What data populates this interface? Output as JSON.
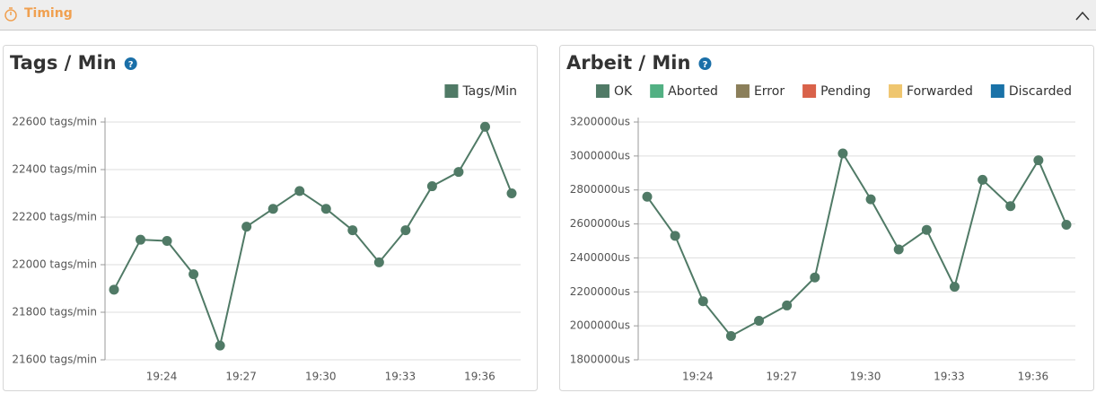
{
  "header": {
    "title": "Timing"
  },
  "chart_data": [
    {
      "type": "line",
      "title": "Tags / Min",
      "help": "?",
      "legend": "top-right",
      "grid": true,
      "categories": [
        null,
        null,
        "19:24",
        null,
        null,
        "19:27",
        null,
        null,
        "19:30",
        null,
        null,
        "19:33",
        null,
        null,
        "19:36",
        null
      ],
      "series": [
        {
          "name": "Tags/Min",
          "color": "#507a66",
          "values": [
            21895,
            22105,
            22100,
            21960,
            21660,
            22160,
            22235,
            22310,
            22235,
            22145,
            22010,
            22145,
            22330,
            22390,
            22580,
            22300
          ]
        }
      ],
      "ylim": [
        21600,
        22600
      ],
      "yticks": [
        {
          "value": 21600,
          "label": "21600 tags/min"
        },
        {
          "value": 21800,
          "label": "21800 tags/min"
        },
        {
          "value": 22000,
          "label": "22000 tags/min"
        },
        {
          "value": 22200,
          "label": "22200 tags/min"
        },
        {
          "value": 22400,
          "label": "22400 tags/min"
        },
        {
          "value": 22600,
          "label": "22600 tags/min"
        }
      ]
    },
    {
      "type": "line",
      "title": "Arbeit / Min",
      "help": "?",
      "legend": "top-right",
      "grid": true,
      "categories": [
        null,
        null,
        "19:24",
        null,
        null,
        "19:27",
        null,
        null,
        "19:30",
        null,
        null,
        "19:33",
        null,
        null,
        "19:36",
        null
      ],
      "series": [
        {
          "name": "OK",
          "color": "#507a66",
          "values": [
            2760000,
            2530000,
            2145000,
            1940000,
            2030000,
            2120000,
            2285000,
            3015000,
            2745000,
            2450000,
            2565000,
            2230000,
            2860000,
            2705000,
            2975000,
            2595000
          ]
        },
        {
          "name": "Aborted",
          "color": "#52b083",
          "values": [
            null,
            null,
            null,
            null,
            null,
            null,
            null,
            null,
            null,
            null,
            null,
            null,
            null,
            null,
            null,
            null
          ]
        },
        {
          "name": "Error",
          "color": "#8b7f5a",
          "values": [
            null,
            null,
            null,
            null,
            null,
            null,
            null,
            null,
            null,
            null,
            null,
            null,
            null,
            null,
            null,
            null
          ]
        },
        {
          "name": "Pending",
          "color": "#d9624a",
          "values": [
            null,
            null,
            null,
            null,
            null,
            null,
            null,
            null,
            null,
            null,
            null,
            null,
            null,
            null,
            null,
            null
          ]
        },
        {
          "name": "Forwarded",
          "color": "#efc66f",
          "values": [
            null,
            null,
            null,
            null,
            null,
            null,
            null,
            null,
            null,
            null,
            null,
            null,
            null,
            null,
            null,
            null
          ]
        },
        {
          "name": "Discarded",
          "color": "#1a72a8",
          "values": [
            null,
            null,
            null,
            null,
            null,
            null,
            null,
            null,
            null,
            null,
            null,
            null,
            null,
            null,
            null,
            null
          ]
        }
      ],
      "ylim": [
        1800000,
        3200000
      ],
      "yticks": [
        {
          "value": 1800000,
          "label": "1800000us"
        },
        {
          "value": 2000000,
          "label": "2000000us"
        },
        {
          "value": 2200000,
          "label": "2200000us"
        },
        {
          "value": 2400000,
          "label": "2400000us"
        },
        {
          "value": 2600000,
          "label": "2600000us"
        },
        {
          "value": 2800000,
          "label": "2800000us"
        },
        {
          "value": 3000000,
          "label": "3000000us"
        },
        {
          "value": 3200000,
          "label": "3200000us"
        }
      ]
    }
  ]
}
